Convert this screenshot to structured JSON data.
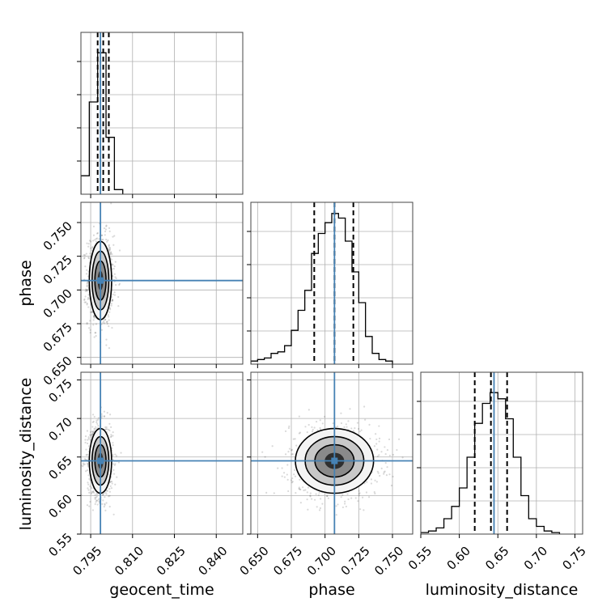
{
  "chart_data": {
    "type": "corner",
    "parameters": [
      "geocent_time",
      "phase",
      "luminosity_distance"
    ],
    "truths": [
      0.7985,
      0.707,
      0.645
    ],
    "quantiles": [
      [
        0.7975,
        0.7995,
        0.8015
      ],
      [
        0.692,
        0.707,
        0.721
      ],
      [
        0.62,
        0.641,
        0.662
      ]
    ],
    "ranges": [
      [
        0.7915,
        0.8495
      ],
      [
        0.645,
        0.765
      ],
      [
        0.55,
        0.76
      ]
    ],
    "ticks": [
      {
        "values": [
          0.795,
          0.81,
          0.825,
          0.84
        ],
        "labels": [
          "0.795",
          "0.810",
          "0.825",
          "0.840"
        ]
      },
      {
        "values": [
          0.65,
          0.675,
          0.7,
          0.725,
          0.75
        ],
        "labels": [
          "0.650",
          "0.675",
          "0.700",
          "0.725",
          "0.750"
        ]
      },
      {
        "values": [
          0.55,
          0.6,
          0.65,
          0.7,
          0.75
        ],
        "labels": [
          "0.55",
          "0.60",
          "0.65",
          "0.70",
          "0.75"
        ]
      }
    ],
    "histograms": [
      {
        "edges": [
          0.7915,
          0.7945,
          0.7975,
          0.8005,
          0.8035,
          0.8065
        ],
        "counts": [
          0.12,
          0.6,
          0.92,
          0.37,
          0.03
        ]
      },
      {
        "edges": [
          0.645,
          0.65,
          0.655,
          0.66,
          0.665,
          0.67,
          0.675,
          0.68,
          0.685,
          0.69,
          0.695,
          0.7,
          0.705,
          0.71,
          0.715,
          0.72,
          0.725,
          0.73,
          0.735,
          0.74,
          0.745,
          0.75
        ],
        "counts": [
          0.02,
          0.03,
          0.04,
          0.07,
          0.08,
          0.12,
          0.22,
          0.35,
          0.48,
          0.72,
          0.85,
          0.92,
          0.98,
          0.95,
          0.8,
          0.6,
          0.4,
          0.18,
          0.07,
          0.03,
          0.02
        ]
      },
      {
        "edges": [
          0.55,
          0.56,
          0.57,
          0.58,
          0.59,
          0.6,
          0.61,
          0.62,
          0.63,
          0.64,
          0.65,
          0.66,
          0.67,
          0.68,
          0.69,
          0.7,
          0.71,
          0.72,
          0.73
        ],
        "counts": [
          0.01,
          0.02,
          0.04,
          0.1,
          0.18,
          0.3,
          0.5,
          0.72,
          0.85,
          0.92,
          0.88,
          0.75,
          0.5,
          0.25,
          0.1,
          0.05,
          0.02,
          0.01
        ]
      }
    ],
    "colors": {
      "truth": "#4682b4",
      "hist": "#000000",
      "grid": "#b0b0b0",
      "scatter": "#000000"
    },
    "grid": true
  }
}
